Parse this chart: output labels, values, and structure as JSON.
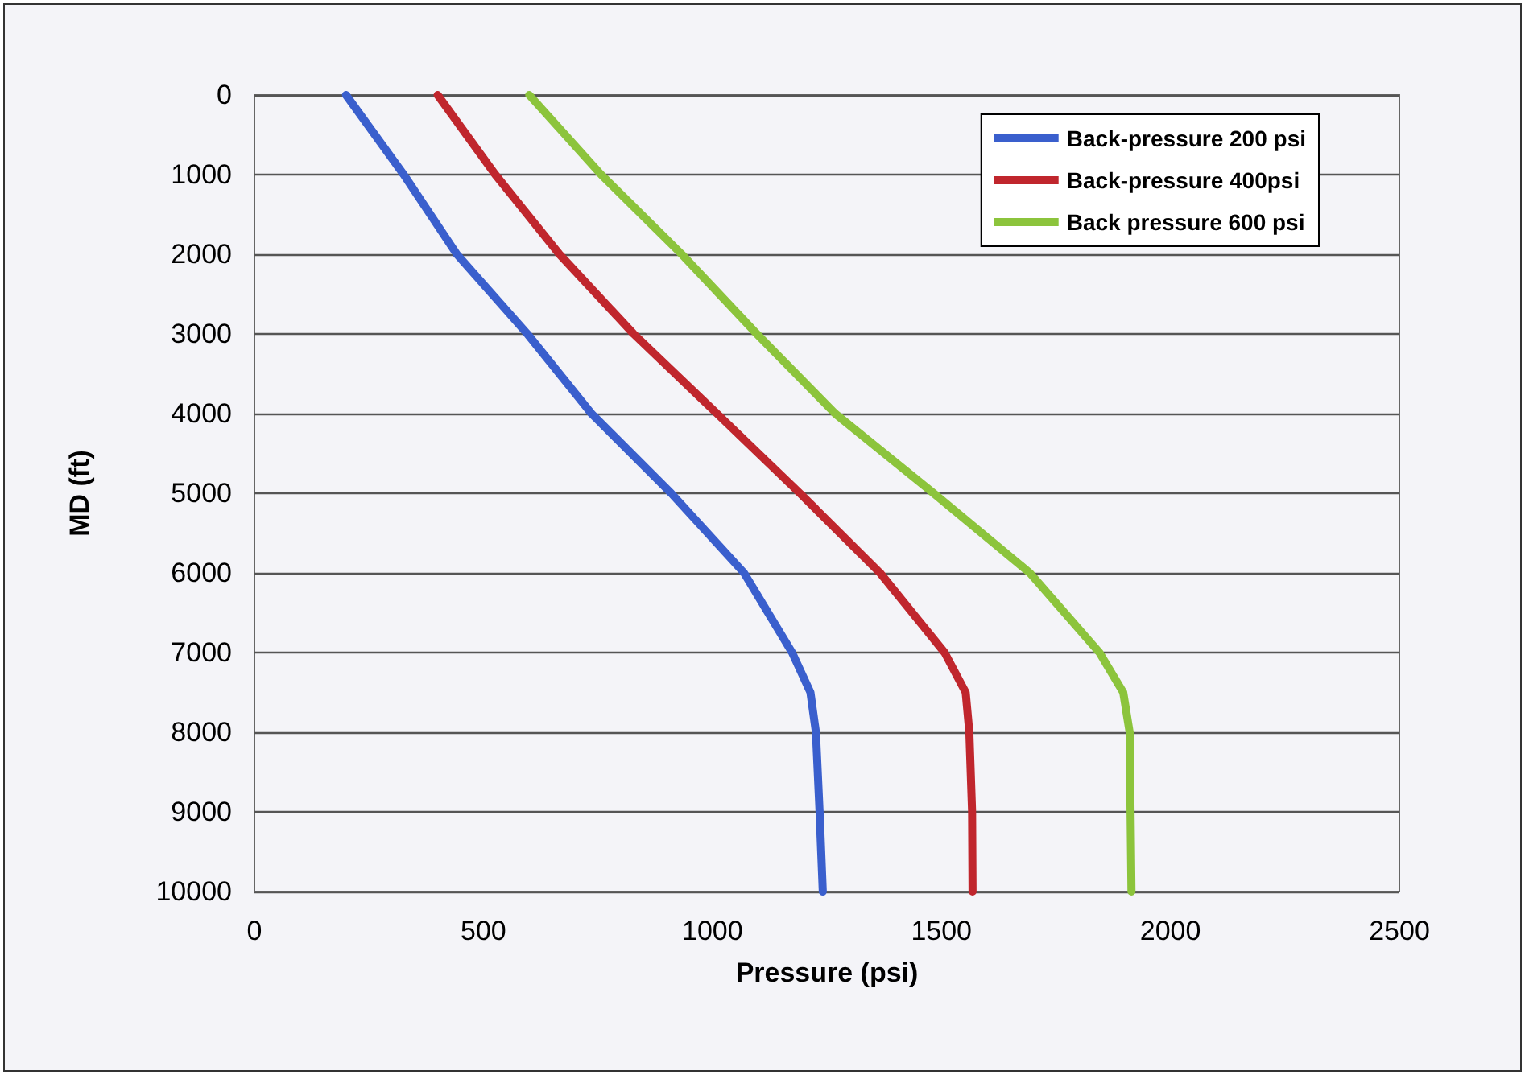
{
  "chart_data": {
    "type": "line",
    "xlabel": "Pressure (psi)",
    "ylabel": "MD (ft)",
    "xlim": [
      0,
      2500
    ],
    "xticks": [
      0,
      500,
      1000,
      1500,
      2000,
      2500
    ],
    "ylim": [
      10000,
      0
    ],
    "yticks": [
      0,
      1000,
      2000,
      3000,
      4000,
      5000,
      6000,
      7000,
      8000,
      9000,
      10000
    ],
    "grid": "y",
    "legend": "top right",
    "marker": "none",
    "line_style": "solid",
    "series": [
      {
        "name": "Back-pressure 200 psi",
        "color": "#3a5fcd",
        "x": [
          200,
          326,
          442,
          596,
          736,
          910,
          1069,
          1174,
          1214,
          1226,
          1234,
          1241
        ],
        "values": [
          0,
          1000,
          2000,
          3000,
          4000,
          5000,
          6000,
          7000,
          7500,
          8000,
          9000,
          10000
        ]
      },
      {
        "name": "Back-pressure 400psi",
        "color": "#c0262d",
        "x": [
          400,
          526,
          666,
          828,
          1010,
          1191,
          1366,
          1507,
          1553,
          1561,
          1567,
          1568
        ],
        "values": [
          0,
          1000,
          2000,
          3000,
          4000,
          5000,
          6000,
          7000,
          7500,
          8000,
          9000,
          10000
        ]
      },
      {
        "name": "Back pressure 600 psi",
        "color": "#8cc43c",
        "x": [
          600,
          757,
          933,
          1097,
          1268,
          1483,
          1693,
          1845,
          1897,
          1911,
          1913,
          1915
        ],
        "values": [
          0,
          1000,
          2000,
          3000,
          4000,
          5000,
          6000,
          7000,
          7500,
          8000,
          9000,
          10000
        ]
      }
    ]
  }
}
